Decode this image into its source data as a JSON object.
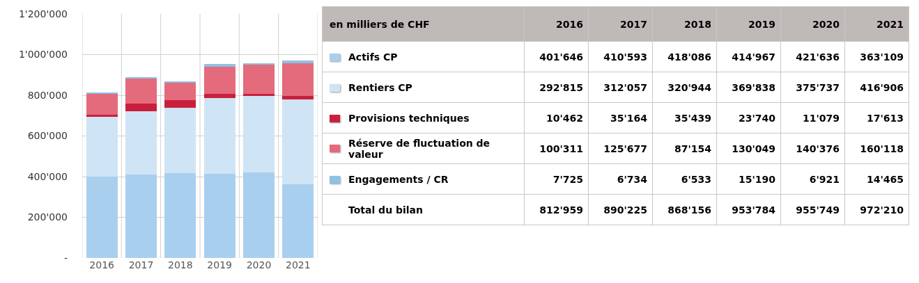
{
  "chart_data": [
    {
      "type": "bar",
      "stacked": true,
      "grid": true,
      "categories": [
        "2016",
        "2017",
        "2018",
        "2019",
        "2020",
        "2021"
      ],
      "ylim": [
        0,
        1200000
      ],
      "yticks": [
        {
          "value": 0,
          "label": "-"
        },
        {
          "value": 200000,
          "label": "200'000"
        },
        {
          "value": 400000,
          "label": "400'000"
        },
        {
          "value": 600000,
          "label": "600'000"
        },
        {
          "value": 800000,
          "label": "800'000"
        },
        {
          "value": 1000000,
          "label": "1'000'000"
        },
        {
          "value": 1200000,
          "label": "1'200'000"
        }
      ],
      "series": [
        {
          "color": "#a9cfee",
          "values": [
            401646,
            410593,
            418086,
            414967,
            421636,
            363109
          ]
        },
        {
          "color": "#cfe4f4",
          "values": [
            292815,
            312057,
            320944,
            369838,
            375737,
            416906
          ]
        },
        {
          "color": "#c8203c",
          "values": [
            10462,
            35164,
            35439,
            23740,
            11079,
            17613
          ]
        },
        {
          "color": "#e36b7c",
          "values": [
            100311,
            125677,
            87154,
            130049,
            140376,
            160118
          ]
        },
        {
          "color": "#8fc0e6",
          "values": [
            7725,
            6734,
            6533,
            15190,
            6921,
            14465
          ]
        }
      ]
    },
    {
      "type": "heatmap",
      "title": "en milliers de CHF",
      "categories": [
        "2016",
        "2017",
        "2018",
        "2019",
        "2020",
        "2021"
      ],
      "y_categories": [
        "Actifs CP",
        "Rentiers CP",
        "Provisions techniques",
        "Réserve de fluctuation de valeur",
        "Engagements / CR",
        "Total du bilan"
      ],
      "cells": [
        [
          401646,
          410593,
          418086,
          414967,
          421636,
          363109
        ],
        [
          292815,
          312057,
          320944,
          369838,
          375737,
          416906
        ],
        [
          10462,
          35164,
          35439,
          23740,
          11079,
          17613
        ],
        [
          100311,
          125677,
          87154,
          130049,
          140376,
          160118
        ],
        [
          7725,
          6734,
          6533,
          15190,
          6921,
          14465
        ],
        [
          812959,
          890225,
          868156,
          953784,
          955749,
          972210
        ]
      ],
      "cell_labels": [
        [
          "401'646",
          "410'593",
          "418'086",
          "414'967",
          "421'636",
          "363'109"
        ],
        [
          "292'815",
          "312'057",
          "320'944",
          "369'838",
          "375'737",
          "416'906"
        ],
        [
          "10'462",
          "35'164",
          "35'439",
          "23'740",
          "11'079",
          "17'613"
        ],
        [
          "100'311",
          "125'677",
          "87'154",
          "130'049",
          "140'376",
          "160'118"
        ],
        [
          "7'725",
          "6'734",
          "6'533",
          "15'190",
          "6'921",
          "14'465"
        ],
        [
          "812'959",
          "890'225",
          "868'156",
          "953'784",
          "955'749",
          "972'210"
        ]
      ]
    }
  ]
}
